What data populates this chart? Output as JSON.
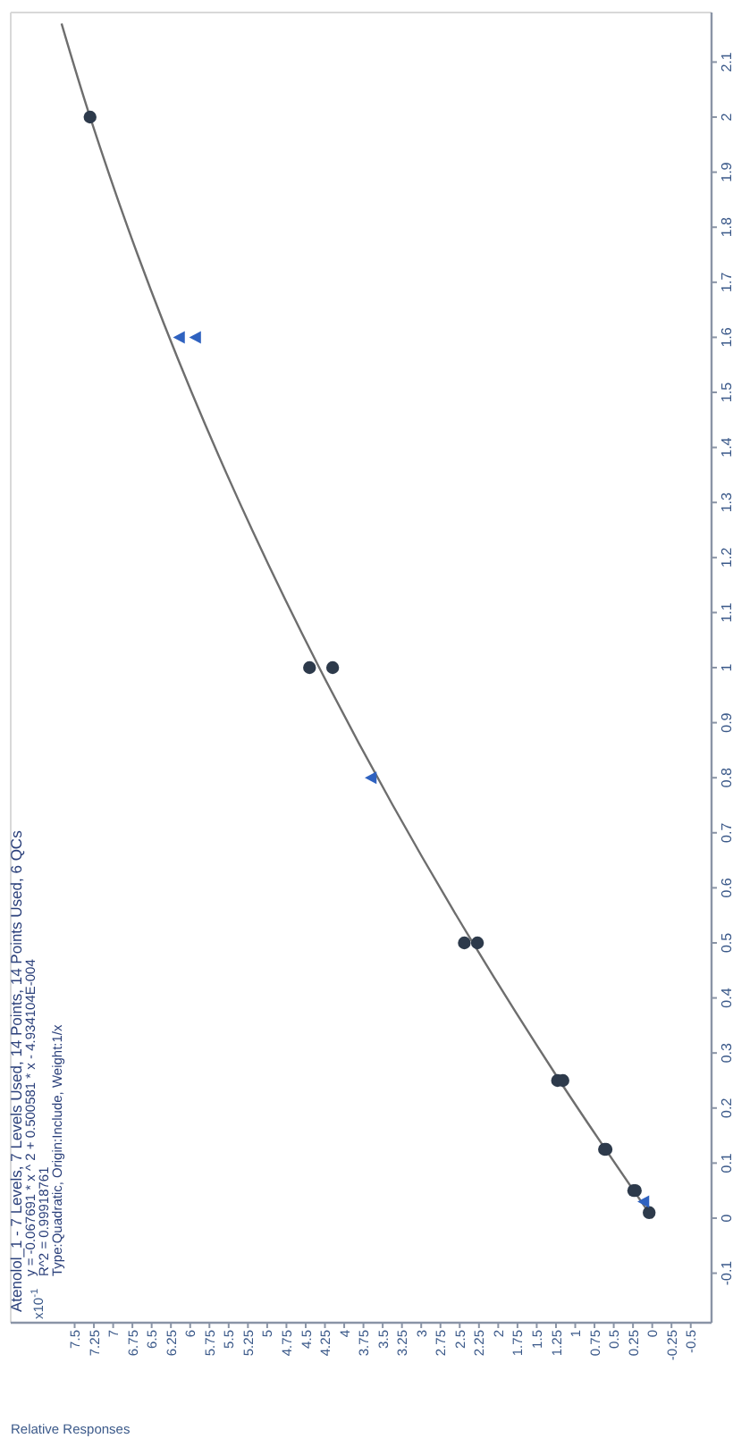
{
  "chart_data": {
    "type": "scatter",
    "title": "Atenolol_1 - 7 Levels, 7 Levels Used, 14 Points, 14 Points Used, 6 QCs",
    "xlabel": "Relative Responses",
    "annotations": [
      "x10$^{-1}$",
      "y = -0.067691 * x ^ 2 + 0.500581 * x - 4.934104E-004",
      "R^2 = 0.99918761",
      "Type:Quadratic, Origin:Include, Weight:1/x"
    ],
    "xlim": [
      8.33,
      -0.77
    ],
    "ylim": [
      -0.19,
      2.19
    ],
    "xticks": [
      -0.5,
      -0.25,
      0,
      0.25,
      0.5,
      0.75,
      1,
      1.25,
      1.5,
      1.75,
      2,
      2.25,
      2.5,
      2.75,
      3,
      3.25,
      3.5,
      3.75,
      4,
      4.25,
      4.5,
      4.75,
      5,
      5.25,
      5.5,
      5.75,
      6,
      6.25,
      6.5,
      6.75,
      7,
      7.25,
      7.5
    ],
    "grid": false,
    "yticks": [
      -0.1,
      0,
      0.1,
      0.2,
      0.3,
      0.4,
      0.5,
      0.6,
      0.7,
      0.8,
      0.9,
      1,
      1.1,
      1.2,
      1.3,
      1.4,
      1.5,
      1.6,
      1.7,
      1.8,
      1.9,
      2,
      2.1
    ],
    "series": [
      {
        "type": "line",
        "color": "#6e6e6e",
        "marker": "none",
        "x": [
          -0.005,
          1.204,
          2.329,
          3.369,
          4.324,
          5.195,
          5.981,
          6.682,
          7.299,
          7.67
        ],
        "values": [
          0,
          0.25,
          0.5,
          0.75,
          1,
          1.25,
          1.5,
          1.75,
          2,
          2.17
        ]
      },
      {
        "marker": "circle",
        "color": "#2d3a4b",
        "x": [
          0.04,
          0.24,
          0.22,
          0.62,
          0.6,
          1.23,
          1.16,
          2.44,
          2.27,
          4.45,
          4.15,
          7.3
        ],
        "values": [
          0.01,
          0.05,
          0.05,
          0.125,
          0.125,
          0.25,
          0.25,
          0.5,
          0.5,
          1,
          1,
          2
        ]
      },
      {
        "marker": "triangle",
        "color": "#2f62c0",
        "x": [
          0.1,
          3.64,
          6.13,
          5.92
        ],
        "values": [
          0.03,
          0.8,
          1.6,
          1.6
        ]
      }
    ]
  }
}
